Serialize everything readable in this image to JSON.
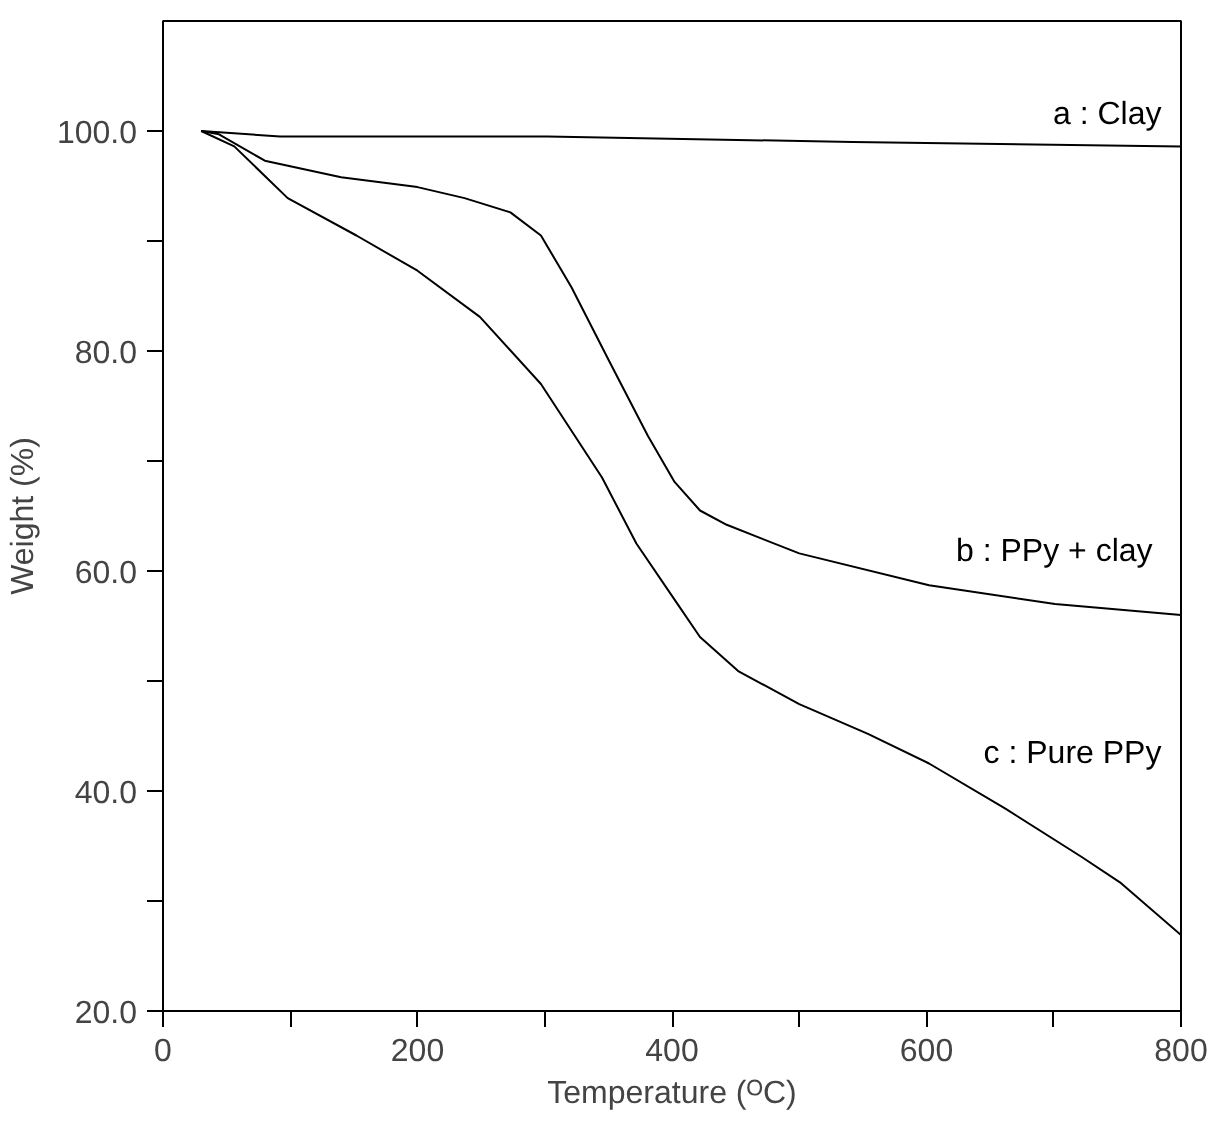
{
  "chart_data": {
    "type": "line",
    "xlabel": "Temperature (ᴼC)",
    "ylabel": "Weight (%)",
    "xlim": [
      0,
      800
    ],
    "ylim": [
      20,
      110
    ],
    "xticks": [
      0,
      {
        "value": 100,
        "label": null
      },
      200,
      {
        "value": 300,
        "label": null
      },
      400,
      {
        "value": 500,
        "label": null
      },
      600,
      {
        "value": 700,
        "label": null
      },
      800
    ],
    "yticks": [
      {
        "value": 20,
        "label": "20.0"
      },
      {
        "value": 30,
        "label": null
      },
      {
        "value": 40,
        "label": "40.0"
      },
      {
        "value": 50,
        "label": null
      },
      {
        "value": 60,
        "label": "60.0"
      },
      {
        "value": 70,
        "label": null
      },
      {
        "value": 80,
        "label": "80.0"
      },
      {
        "value": 90,
        "label": null
      },
      {
        "value": 100,
        "label": "100.0"
      }
    ],
    "grid": false,
    "marker": "none",
    "line_style": "solid",
    "series": [
      {
        "name": "a : Clay",
        "color": "#000000",
        "x": [
          30,
          92,
          302,
          542,
          800
        ],
        "values": [
          100,
          99.5,
          99.5,
          99,
          98.6
        ]
      },
      {
        "name": "b :  PPy + clay",
        "color": "#000000",
        "x": [
          30,
          44,
          80,
          140,
          200,
          237,
          273,
          297,
          321,
          351,
          381,
          402,
          422,
          443,
          500,
          602,
          701,
          800
        ],
        "values": [
          100,
          99.7,
          97.3,
          95.8,
          94.9,
          93.9,
          92.6,
          90.5,
          85.8,
          79,
          72.3,
          68.1,
          65.5,
          64.2,
          61.6,
          58.7,
          57,
          56
        ]
      },
      {
        "name": "c : Pure PPy",
        "color": "#000000",
        "x": [
          30,
          56,
          98,
          152,
          200,
          249,
          297,
          345,
          372,
          402,
          422,
          452,
          500,
          554,
          602,
          662,
          722,
          752,
          800
        ],
        "values": [
          100,
          98.6,
          93.9,
          90.5,
          87.3,
          83.1,
          77,
          68.5,
          62.5,
          57.4,
          54,
          50.9,
          47.9,
          45.2,
          42.5,
          38.4,
          34,
          31.7,
          26.9
        ]
      }
    ]
  }
}
